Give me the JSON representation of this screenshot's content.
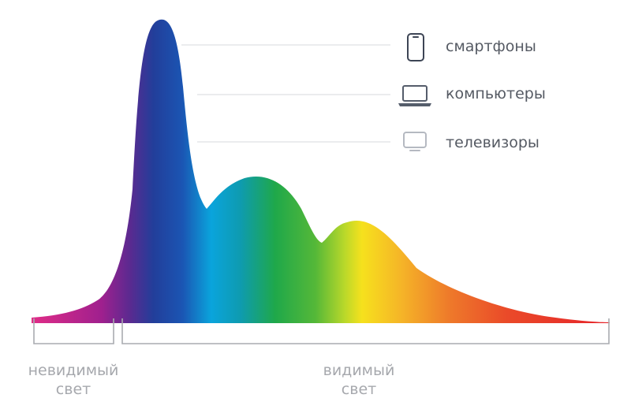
{
  "devices": [
    {
      "label": "смартфоны",
      "icon": "smartphone-icon"
    },
    {
      "label": "компьютеры",
      "icon": "laptop-icon"
    },
    {
      "label": "телевизоры",
      "icon": "tv-icon"
    }
  ],
  "ranges": {
    "invisible": {
      "line1": "невидимый",
      "line2": "свет"
    },
    "visible": {
      "line1": "видимый",
      "line2": "свет"
    }
  },
  "colors": {
    "violet": "#8a1f8f",
    "blue": "#1e3f9c",
    "cyan": "#0ea5dd",
    "green": "#1faa4a",
    "yellow": "#f5dc1d",
    "orange": "#f29a26",
    "red": "#e8242a",
    "icon_dark": "#3d4555",
    "icon_light": "#b5b9c1"
  }
}
